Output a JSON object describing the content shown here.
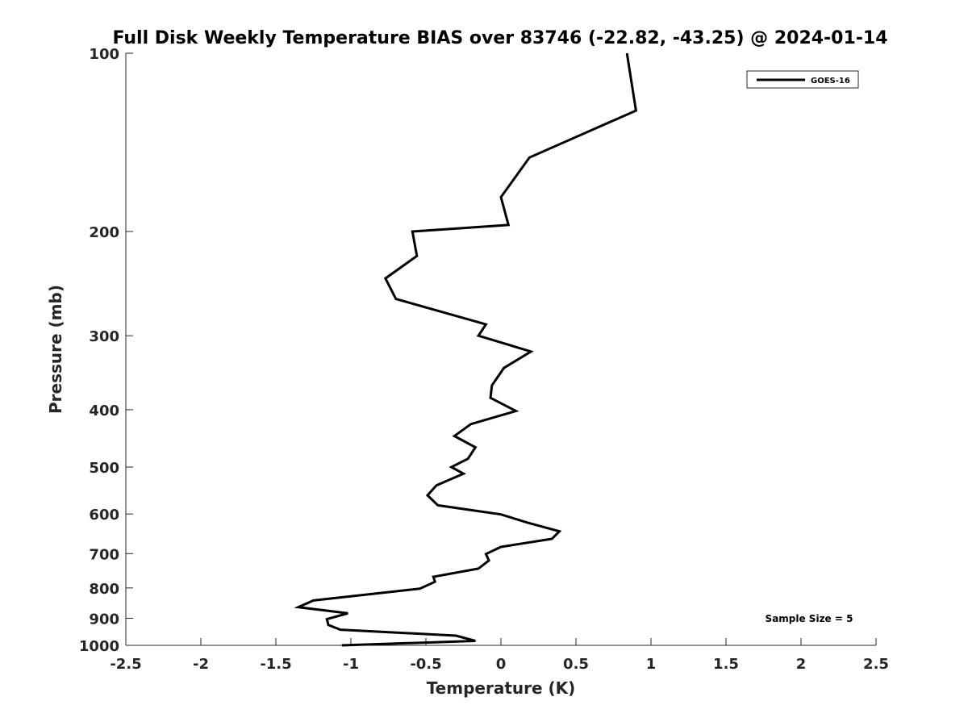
{
  "chart_data": {
    "type": "line",
    "title": "Full Disk Weekly Temperature BIAS over 83746 (-22.82, -43.25) @ 2024-01-14",
    "xlabel": "Temperature (K)",
    "ylabel": "Pressure (mb)",
    "xlim": [
      -2.5,
      2.5
    ],
    "ylim": [
      1000,
      100
    ],
    "y_scale": "log",
    "grid": false,
    "x_ticks": [
      -2.5,
      -2,
      -1.5,
      -1,
      -0.5,
      0,
      0.5,
      1,
      1.5,
      2,
      2.5
    ],
    "x_tick_labels": [
      "-2.5",
      "-2",
      "-1.5",
      "-1",
      "-0.5",
      "0",
      "0.5",
      "1",
      "1.5",
      "2",
      "2.5"
    ],
    "y_ticks": [
      100,
      200,
      300,
      400,
      500,
      600,
      700,
      800,
      900,
      1000
    ],
    "y_tick_labels": [
      "100",
      "200",
      "300",
      "400",
      "500",
      "600",
      "700",
      "800",
      "900",
      "1000"
    ],
    "legend": {
      "position": "top-right",
      "entries": [
        "GOES-16"
      ]
    },
    "annotation": "Sample Size = 5",
    "series": [
      {
        "name": "GOES-16",
        "color": "#000000",
        "points": [
          {
            "x": 0.84,
            "p": 100
          },
          {
            "x": 0.9,
            "p": 125
          },
          {
            "x": 0.19,
            "p": 150
          },
          {
            "x": 0.0,
            "p": 175
          },
          {
            "x": 0.05,
            "p": 195
          },
          {
            "x": -0.59,
            "p": 200
          },
          {
            "x": -0.56,
            "p": 220
          },
          {
            "x": -0.77,
            "p": 240
          },
          {
            "x": -0.7,
            "p": 260
          },
          {
            "x": -0.1,
            "p": 287
          },
          {
            "x": -0.15,
            "p": 300
          },
          {
            "x": 0.2,
            "p": 319
          },
          {
            "x": 0.02,
            "p": 340
          },
          {
            "x": -0.06,
            "p": 364
          },
          {
            "x": -0.07,
            "p": 382
          },
          {
            "x": 0.1,
            "p": 402
          },
          {
            "x": -0.2,
            "p": 423
          },
          {
            "x": -0.31,
            "p": 443
          },
          {
            "x": -0.17,
            "p": 463
          },
          {
            "x": -0.22,
            "p": 484
          },
          {
            "x": -0.33,
            "p": 500
          },
          {
            "x": -0.25,
            "p": 513
          },
          {
            "x": -0.43,
            "p": 537
          },
          {
            "x": -0.49,
            "p": 558
          },
          {
            "x": -0.42,
            "p": 580
          },
          {
            "x": 0.0,
            "p": 601
          },
          {
            "x": 0.18,
            "p": 621
          },
          {
            "x": 0.39,
            "p": 642
          },
          {
            "x": 0.34,
            "p": 661
          },
          {
            "x": 0.0,
            "p": 682
          },
          {
            "x": -0.1,
            "p": 701
          },
          {
            "x": -0.08,
            "p": 719
          },
          {
            "x": -0.15,
            "p": 742
          },
          {
            "x": -0.45,
            "p": 766
          },
          {
            "x": -0.44,
            "p": 781
          },
          {
            "x": -0.54,
            "p": 802
          },
          {
            "x": -1.25,
            "p": 840
          },
          {
            "x": -1.35,
            "p": 862
          },
          {
            "x": -1.02,
            "p": 883
          },
          {
            "x": -1.16,
            "p": 903
          },
          {
            "x": -1.15,
            "p": 924
          },
          {
            "x": -1.07,
            "p": 941
          },
          {
            "x": -0.3,
            "p": 963
          },
          {
            "x": -0.17,
            "p": 983
          },
          {
            "x": -1.06,
            "p": 1000
          }
        ]
      }
    ]
  }
}
